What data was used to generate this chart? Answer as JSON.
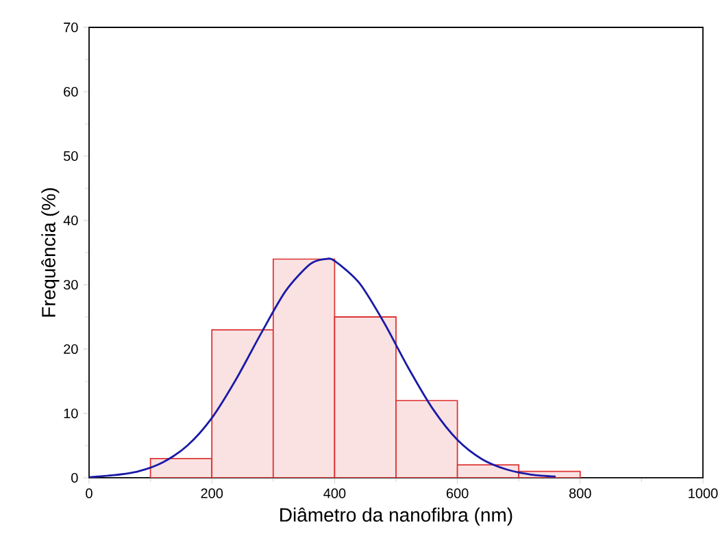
{
  "chart_data": {
    "type": "histogram",
    "xlabel": "Diâmetro da nanofibra (nm)",
    "ylabel": "Frequência (%)",
    "xlim": [
      0,
      1000
    ],
    "xticks": [
      0,
      200,
      400,
      600,
      800,
      1000
    ],
    "ylim": [
      0,
      70
    ],
    "yticks": [
      0,
      10,
      20,
      30,
      40,
      50,
      60,
      70
    ],
    "series": [
      {
        "type": "histogram",
        "color": "#dd3333",
        "bins": [
          100,
          200,
          300,
          400,
          500,
          600,
          700,
          800
        ],
        "values": [
          3,
          23,
          34,
          25,
          12,
          2,
          1
        ]
      },
      {
        "type": "line",
        "color": "#1a1aa8",
        "x": [
          0,
          40,
          80,
          120,
          160,
          200,
          240,
          280,
          320,
          360,
          385,
          400,
          440,
          480,
          520,
          560,
          600,
          640,
          680,
          720,
          760
        ],
        "values": [
          0.1,
          0.4,
          1.0,
          2.4,
          5.0,
          9.3,
          15.4,
          22.4,
          29.0,
          33.2,
          34.0,
          33.7,
          30.3,
          24.2,
          17.1,
          10.7,
          5.9,
          2.9,
          1.3,
          0.5,
          0.2
        ]
      }
    ]
  }
}
